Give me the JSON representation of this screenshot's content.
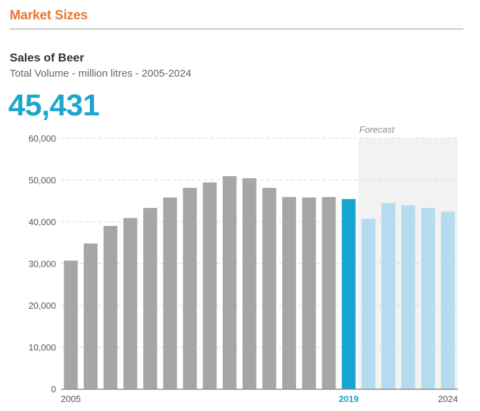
{
  "header": {
    "section_title": "Market Sizes"
  },
  "chart_data": {
    "type": "bar",
    "title": "Sales of Beer",
    "subtitle": "Total Volume - million litres - 2005-2024",
    "headline_value": "45,431",
    "forecast_label": "Forecast",
    "categories": [
      "2005",
      "2006",
      "2007",
      "2008",
      "2009",
      "2010",
      "2011",
      "2012",
      "2013",
      "2014",
      "2015",
      "2016",
      "2017",
      "2018",
      "2019",
      "2020",
      "2021",
      "2022",
      "2023",
      "2024"
    ],
    "values": [
      30700,
      34800,
      39000,
      40900,
      43300,
      45800,
      48100,
      49400,
      50900,
      50400,
      48100,
      45900,
      45800,
      45900,
      45431,
      40700,
      44500,
      43900,
      43300,
      42400
    ],
    "x_tick_labels": [
      "2005",
      "2019",
      "2024"
    ],
    "highlight_category": "2019",
    "forecast_start_category": "2020",
    "ylim": [
      0,
      60000
    ],
    "y_ticks": [
      0,
      10000,
      20000,
      30000,
      40000,
      50000,
      60000
    ],
    "y_tick_labels": [
      "0",
      "10,000",
      "20,000",
      "30,000",
      "40,000",
      "50,000",
      "60,000"
    ],
    "xlabel": "",
    "ylabel": "",
    "grid": true,
    "colors": {
      "historic": "#a6a6a6",
      "current": "#16a6cf",
      "forecast": "#b5dcee",
      "forecast_band": "#f2f2f2",
      "grid": "#d9d9d9",
      "axis": "#8c8c8c",
      "highlight_text": "#1ba6cc"
    }
  }
}
